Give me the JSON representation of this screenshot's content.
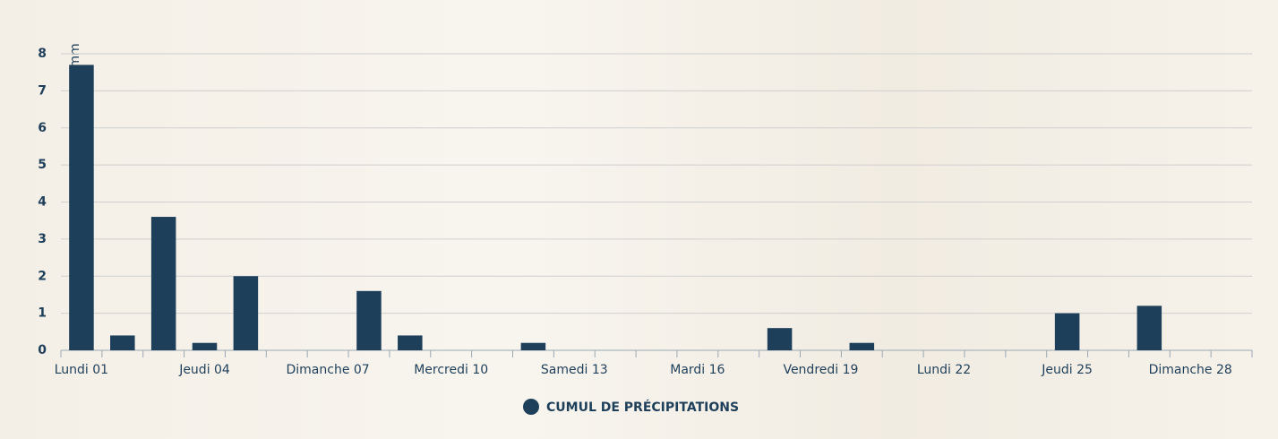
{
  "chart_data": {
    "type": "bar",
    "y_label": "mm",
    "categories": [
      "Lundi 01",
      null,
      null,
      "Jeudi 04",
      null,
      null,
      "Dimanche 07",
      null,
      null,
      "Mercredi 10",
      null,
      null,
      "Samedi 13",
      null,
      null,
      "Mardi 16",
      null,
      null,
      "Vendredi 19",
      null,
      null,
      "Lundi 22",
      null,
      null,
      "Jeudi 25",
      null,
      null,
      "Dimanche 28",
      null
    ],
    "series": [
      {
        "name": "CUMUL DE PRÉCIPITATIONS",
        "color": "#1e3f5a",
        "values": [
          7.7,
          0.4,
          3.6,
          0.2,
          2.0,
          0,
          0,
          1.6,
          0.4,
          0,
          0,
          0.2,
          0,
          0,
          0,
          0,
          0,
          0.6,
          0,
          0.2,
          0,
          0,
          0,
          0,
          1.0,
          0,
          1.2,
          0,
          0
        ]
      }
    ],
    "ylim": [
      0,
      8
    ],
    "yticks": [
      0,
      1,
      2,
      3,
      4,
      5,
      6,
      7,
      8
    ],
    "grid": true,
    "legend": "bottom"
  }
}
